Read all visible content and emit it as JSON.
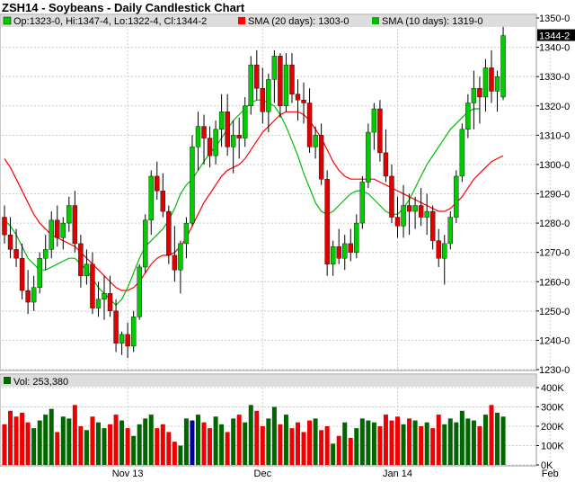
{
  "header": {
    "title": "ZSH14 - Soybeans - Daily Candlestick Chart"
  },
  "legend": {
    "ohlc": "Op:1323-0, Hi:1347-4, Lo:1322-4, Cl:1344-2",
    "sma20": "SMA (20 days): 1303-0",
    "sma10": "SMA (10 days): 1319-0",
    "volume": "Vol: 253,380"
  },
  "last_price_label": "1344-2",
  "colors": {
    "up": "#00cc00",
    "down": "#e00000",
    "wick": "#000000",
    "sma20": "#ff0000",
    "sma10": "#00bb00",
    "vol_up": "#006600",
    "vol_down": "#ee0000",
    "vol_special": "#000099",
    "grid": "#cccccc",
    "last_bg": "#000000"
  },
  "chart_data": {
    "type": "candlestick",
    "title": "ZSH14 - Soybeans - Daily Candlestick Chart",
    "price_axis": {
      "ylim": [
        1230,
        1350
      ],
      "ticks": [
        1230,
        1240,
        1250,
        1260,
        1270,
        1280,
        1290,
        1300,
        1310,
        1320,
        1330,
        1340,
        1350
      ],
      "tick_labels": [
        "1230-0",
        "1240-0",
        "1250-0",
        "1260-0",
        "1270-0",
        "1280-0",
        "1290-0",
        "1300-0",
        "1310-0",
        "1320-0",
        "1330-0",
        "1340-0",
        "1350-0"
      ]
    },
    "volume_axis": {
      "ylim": [
        0,
        400000
      ],
      "ticks": [
        0,
        100000,
        200000,
        300000,
        400000
      ],
      "tick_labels": [
        "0K",
        "100K",
        "200K",
        "300K",
        "400K"
      ]
    },
    "x_labels": [
      {
        "index": 21,
        "label": "Nov 13"
      },
      {
        "index": 44,
        "label": "Dec"
      },
      {
        "index": 67,
        "label": "Jan 14"
      },
      {
        "index": 93,
        "label": "Feb"
      }
    ],
    "grid": true,
    "candles": [
      [
        1282,
        1286,
        1273,
        1276
      ],
      [
        1276,
        1282,
        1268,
        1271
      ],
      [
        1271,
        1278,
        1265,
        1268
      ],
      [
        1268,
        1273,
        1254,
        1257
      ],
      [
        1257,
        1264,
        1249,
        1253
      ],
      [
        1253,
        1262,
        1250,
        1258
      ],
      [
        1258,
        1270,
        1256,
        1268
      ],
      [
        1268,
        1276,
        1264,
        1271
      ],
      [
        1271,
        1284,
        1268,
        1281
      ],
      [
        1281,
        1286,
        1272,
        1275
      ],
      [
        1275,
        1282,
        1271,
        1280
      ],
      [
        1280,
        1289,
        1277,
        1286
      ],
      [
        1286,
        1291,
        1270,
        1273
      ],
      [
        1273,
        1276,
        1258,
        1262
      ],
      [
        1262,
        1271,
        1259,
        1266
      ],
      [
        1266,
        1270,
        1249,
        1251
      ],
      [
        1251,
        1260,
        1248,
        1254
      ],
      [
        1254,
        1262,
        1247,
        1256
      ],
      [
        1256,
        1262,
        1248,
        1250
      ],
      [
        1250,
        1254,
        1236,
        1239
      ],
      [
        1239,
        1243,
        1235,
        1242
      ],
      [
        1242,
        1246,
        1234,
        1238
      ],
      [
        1238,
        1250,
        1236,
        1248
      ],
      [
        1248,
        1266,
        1247,
        1265
      ],
      [
        1265,
        1283,
        1263,
        1281
      ],
      [
        1281,
        1298,
        1276,
        1296
      ],
      [
        1296,
        1301,
        1288,
        1291
      ],
      [
        1291,
        1297,
        1282,
        1284
      ],
      [
        1284,
        1286,
        1266,
        1269
      ],
      [
        1269,
        1279,
        1260,
        1264
      ],
      [
        1264,
        1274,
        1256,
        1273
      ],
      [
        1273,
        1282,
        1268,
        1280
      ],
      [
        1280,
        1310,
        1279,
        1306
      ],
      [
        1306,
        1318,
        1298,
        1313
      ],
      [
        1313,
        1317,
        1300,
        1309
      ],
      [
        1309,
        1313,
        1299,
        1303
      ],
      [
        1303,
        1315,
        1300,
        1312
      ],
      [
        1312,
        1324,
        1306,
        1318
      ],
      [
        1318,
        1324,
        1303,
        1306
      ],
      [
        1306,
        1315,
        1297,
        1310
      ],
      [
        1310,
        1316,
        1302,
        1309
      ],
      [
        1309,
        1323,
        1306,
        1320
      ],
      [
        1320,
        1337,
        1317,
        1334
      ],
      [
        1334,
        1339,
        1322,
        1326
      ],
      [
        1326,
        1333,
        1314,
        1318
      ],
      [
        1318,
        1331,
        1311,
        1329
      ],
      [
        1329,
        1339,
        1321,
        1337
      ],
      [
        1337,
        1338,
        1316,
        1320
      ],
      [
        1320,
        1338,
        1318,
        1334
      ],
      [
        1334,
        1338,
        1321,
        1324
      ],
      [
        1324,
        1329,
        1315,
        1322
      ],
      [
        1322,
        1328,
        1314,
        1321
      ],
      [
        1321,
        1326,
        1304,
        1306
      ],
      [
        1306,
        1313,
        1302,
        1310
      ],
      [
        1310,
        1314,
        1293,
        1295
      ],
      [
        1295,
        1298,
        1262,
        1266
      ],
      [
        1266,
        1274,
        1262,
        1272
      ],
      [
        1272,
        1278,
        1266,
        1268
      ],
      [
        1268,
        1276,
        1264,
        1273
      ],
      [
        1273,
        1278,
        1267,
        1270
      ],
      [
        1270,
        1283,
        1268,
        1280
      ],
      [
        1280,
        1296,
        1278,
        1294
      ],
      [
        1294,
        1314,
        1292,
        1311
      ],
      [
        1311,
        1321,
        1305,
        1319
      ],
      [
        1319,
        1322,
        1301,
        1304
      ],
      [
        1304,
        1312,
        1294,
        1296
      ],
      [
        1296,
        1300,
        1280,
        1282
      ],
      [
        1282,
        1289,
        1275,
        1279
      ],
      [
        1279,
        1293,
        1275,
        1286
      ],
      [
        1286,
        1290,
        1276,
        1284
      ],
      [
        1284,
        1289,
        1278,
        1286
      ],
      [
        1286,
        1292,
        1279,
        1282
      ],
      [
        1282,
        1290,
        1276,
        1284
      ],
      [
        1284,
        1286,
        1271,
        1274
      ],
      [
        1274,
        1278,
        1265,
        1268
      ],
      [
        1268,
        1276,
        1259,
        1273
      ],
      [
        1273,
        1284,
        1271,
        1282
      ],
      [
        1282,
        1298,
        1280,
        1296
      ],
      [
        1296,
        1314,
        1294,
        1312
      ],
      [
        1312,
        1324,
        1309,
        1321
      ],
      [
        1321,
        1332,
        1312,
        1326
      ],
      [
        1326,
        1330,
        1314,
        1323
      ],
      [
        1323,
        1336,
        1318,
        1333
      ],
      [
        1333,
        1339,
        1321,
        1325
      ],
      [
        1325,
        1332,
        1318,
        1330
      ],
      [
        1323,
        1347,
        1322,
        1344
      ]
    ],
    "sma20": [
      1302,
      1299,
      1295,
      1291,
      1287,
      1283,
      1280,
      1278,
      1276,
      1275,
      1274,
      1273,
      1272,
      1270,
      1268,
      1266,
      1264,
      1262,
      1260,
      1258,
      1257,
      1257,
      1258,
      1260,
      1263,
      1266,
      1268,
      1269,
      1269,
      1270,
      1272,
      1275,
      1279,
      1283,
      1287,
      1290,
      1293,
      1296,
      1298,
      1299,
      1300,
      1302,
      1305,
      1308,
      1311,
      1313,
      1315,
      1317,
      1318,
      1318,
      1318,
      1317,
      1315,
      1312,
      1309,
      1305,
      1301,
      1298,
      1296,
      1295,
      1295,
      1295,
      1295,
      1295,
      1294,
      1293,
      1292,
      1291,
      1290,
      1289,
      1288,
      1287,
      1286,
      1285,
      1284,
      1284,
      1285,
      1287,
      1289,
      1292,
      1295,
      1297,
      1299,
      1301,
      1302,
      1303
    ],
    "sma10": [
      1281,
      1279,
      1276,
      1272,
      1268,
      1266,
      1264,
      1264,
      1265,
      1266,
      1267,
      1268,
      1268,
      1266,
      1264,
      1261,
      1258,
      1256,
      1254,
      1252,
      1254,
      1258,
      1263,
      1268,
      1272,
      1274,
      1276,
      1278,
      1281,
      1285,
      1290,
      1293,
      1295,
      1298,
      1301,
      1304,
      1306,
      1309,
      1312,
      1315,
      1317,
      1319,
      1321,
      1322,
      1322,
      1321,
      1320,
      1317,
      1313,
      1308,
      1303,
      1297,
      1292,
      1287,
      1284,
      1283,
      1284,
      1286,
      1288,
      1290,
      1291,
      1291,
      1290,
      1288,
      1286,
      1284,
      1283,
      1283,
      1285,
      1288,
      1292,
      1296,
      1300,
      1303,
      1306,
      1309,
      1312,
      1314,
      1316,
      1318,
      1319,
      1319
    ],
    "volume": [
      210000,
      280000,
      250000,
      270000,
      220000,
      190000,
      230000,
      260000,
      290000,
      170000,
      250000,
      240000,
      310000,
      200000,
      180000,
      250000,
      220000,
      190000,
      210000,
      260000,
      230000,
      190000,
      150000,
      210000,
      240000,
      260000,
      190000,
      210000,
      170000,
      120000,
      100000,
      240000,
      230000,
      260000,
      220000,
      190000,
      250000,
      210000,
      170000,
      240000,
      260000,
      220000,
      310000,
      280000,
      200000,
      240000,
      300000,
      210000,
      260000,
      190000,
      220000,
      170000,
      230000,
      240000,
      180000,
      200000,
      110000,
      150000,
      220000,
      140000,
      190000,
      240000,
      230000,
      220000,
      200000,
      260000,
      230000,
      250000,
      210000,
      240000,
      230000,
      200000,
      220000,
      190000,
      260000,
      210000,
      240000,
      220000,
      280000,
      240000,
      230000,
      200000,
      260000,
      310000,
      270000,
      250000
    ],
    "special_volume_index": 32
  }
}
